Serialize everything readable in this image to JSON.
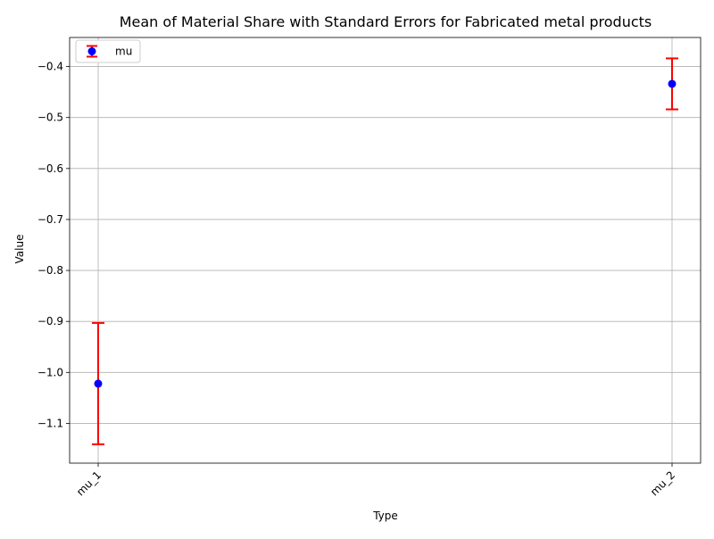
{
  "chart_data": {
    "type": "scatter",
    "title": "Mean of Material Share with Standard Errors for Fabricated metal products",
    "xlabel": "Type",
    "ylabel": "Value",
    "categories": [
      "mu_1",
      "mu_2"
    ],
    "series": [
      {
        "name": "mu",
        "values": [
          -1.022,
          -0.434
        ],
        "errors": [
          0.119,
          0.05
        ],
        "marker_color": "#0000ff",
        "error_color": "#ff0000"
      }
    ],
    "ylim": [
      -1.178,
      -0.343
    ],
    "yticks": [
      -1.1,
      -1.0,
      -0.9,
      -0.8,
      -0.7,
      -0.6,
      -0.5,
      -0.4
    ],
    "ytick_labels": [
      "−1.1",
      "−1.0",
      "−0.9",
      "−0.8",
      "−0.7",
      "−0.6",
      "−0.5",
      "−0.4"
    ],
    "grid": true,
    "legend_position": "upper-left"
  }
}
